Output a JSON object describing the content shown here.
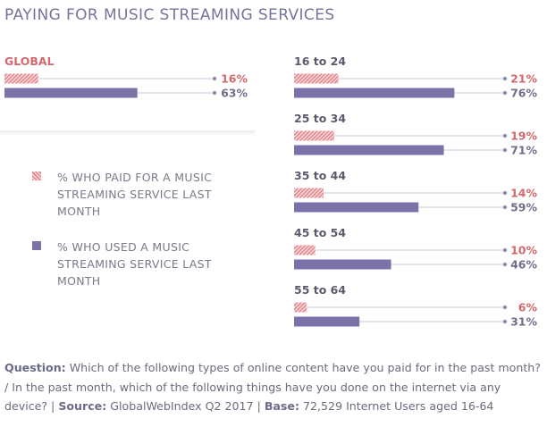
{
  "title": "PAYING FOR MUSIC STREAMING SERVICES",
  "colors": {
    "paid": "#e2868c",
    "paid_text": "#d4686f",
    "used": "#7a73a8",
    "used_text": "#6e6e8a",
    "axis_line": "#c9c9d8",
    "axis_dot": "#8f8fb0"
  },
  "legend": {
    "paid": "% WHO PAID FOR A MUSIC STREAMING SERVICE LAST MONTH",
    "used": "% WHO USED A MUSIC STREAMING SERVICE LAST MONTH"
  },
  "footer": {
    "question_label": "Question:",
    "question_text": "Which of the following types of online content have you paid for in the past month? / In the past month, which of the following things have you done on the internet via any device? |",
    "source_label": "Source:",
    "source_text": "GlobalWebIndex Q2 2017 |",
    "base_label": "Base:",
    "base_text": "72,529 Internet Users aged 16-64"
  },
  "chart_data": {
    "type": "bar",
    "orientation": "horizontal",
    "unit": "%",
    "xlim": [
      0,
      100
    ],
    "series_keys": [
      "paid",
      "used"
    ],
    "categories": [
      "GLOBAL",
      "16 to 24",
      "25 to 34",
      "35 to 44",
      "45 to 54",
      "55 to 64"
    ],
    "series": [
      {
        "key": "paid",
        "values": [
          16,
          21,
          19,
          14,
          10,
          6
        ]
      },
      {
        "key": "used",
        "values": [
          63,
          76,
          71,
          59,
          46,
          31
        ]
      }
    ],
    "labels": {
      "paid": [
        "16%",
        "21%",
        "19%",
        "14%",
        "10%",
        "6%"
      ],
      "used": [
        "63%",
        "76%",
        "71%",
        "59%",
        "46%",
        "31%"
      ]
    }
  }
}
